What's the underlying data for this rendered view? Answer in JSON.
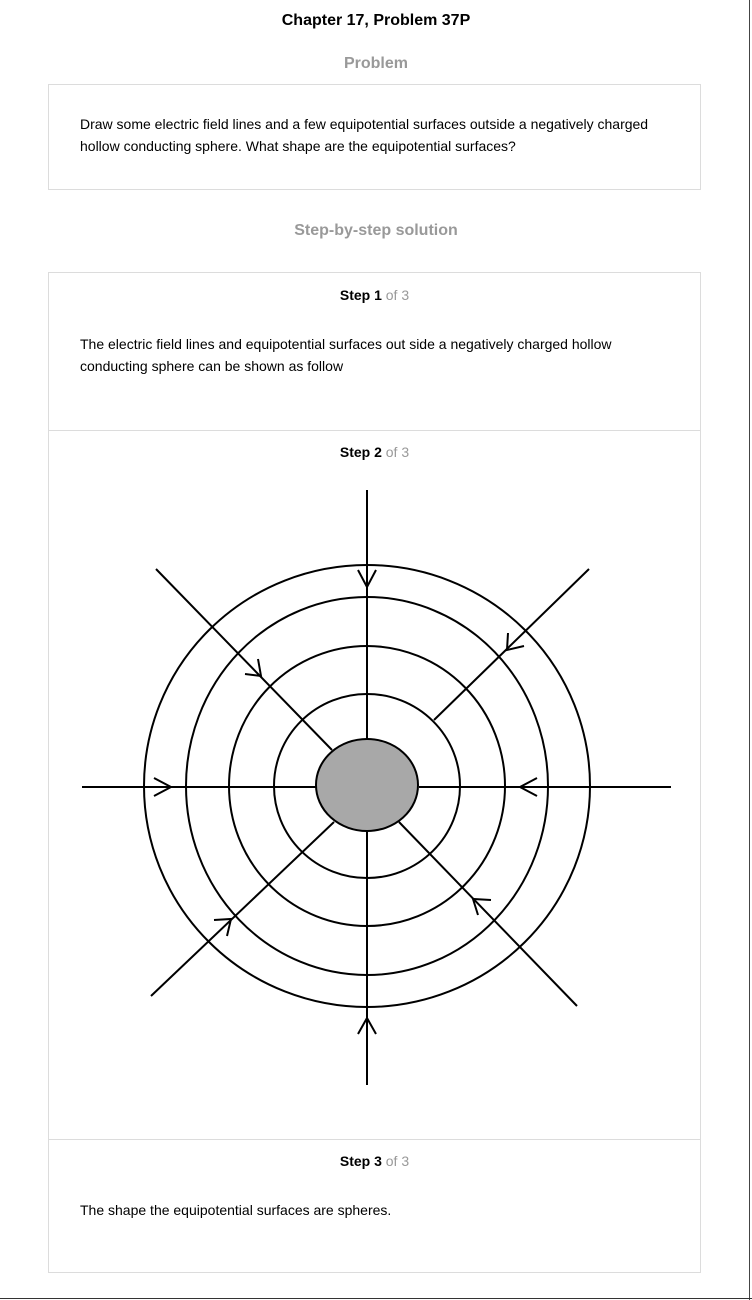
{
  "header": {
    "title": "Chapter 17, Problem 37P"
  },
  "problem": {
    "heading": "Problem",
    "text": "Draw some electric field lines and a few equipotential surfaces outside a negatively charged hollow conducting sphere. What shape are the equipotential surfaces?"
  },
  "solution": {
    "heading": "Step-by-step solution",
    "steps": [
      {
        "label": "Step 1",
        "of": "of 3",
        "text": "The electric field lines and equipotential surfaces out side a negatively charged hollow conducting sphere can be shown as follow"
      },
      {
        "label": "Step 2",
        "of": "of 3"
      },
      {
        "label": "Step 3",
        "of": "of 3",
        "text": "The shape the equipotential surfaces are spheres."
      }
    ]
  },
  "figure": {
    "sphere_fill": "#a8a8a8",
    "line_color": "#000000"
  }
}
